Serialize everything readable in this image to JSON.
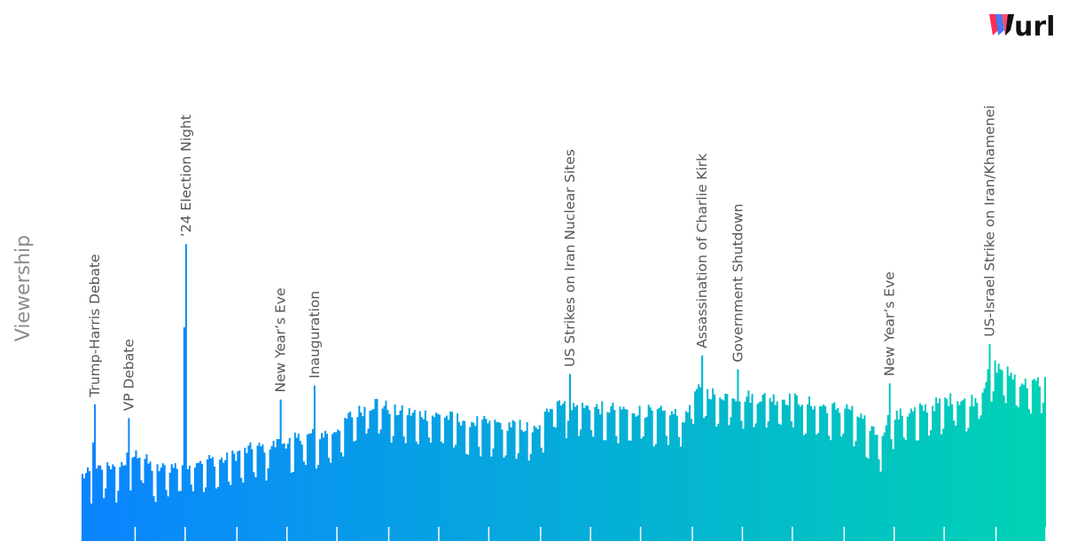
{
  "brand": {
    "logo_text": "wurl",
    "logo_colors": [
      "#ff2d55",
      "#2f6bff",
      "#111111"
    ]
  },
  "chart_data": {
    "type": "area",
    "title": "",
    "xlabel": "",
    "ylabel": "Viewership",
    "grid": false,
    "legend": "none",
    "y_scale": "relative (no numeric axis printed)",
    "gradient": [
      "#0a84ff",
      "#00d2b4"
    ],
    "ylim": [
      0,
      100
    ],
    "xlim": [
      0,
      540
    ],
    "x_ticks_count": 19,
    "x_tick_positions": [
      30,
      58,
      87,
      115,
      143,
      172,
      200,
      228,
      257,
      285,
      313,
      342,
      370,
      398,
      427,
      455,
      483,
      512,
      540
    ],
    "anchors": [
      [
        0,
        27
      ],
      [
        8,
        29
      ],
      [
        15,
        33
      ],
      [
        18,
        29
      ],
      [
        27,
        35
      ],
      [
        32,
        37
      ],
      [
        40,
        30
      ],
      [
        50,
        31
      ],
      [
        65,
        34
      ],
      [
        80,
        34
      ],
      [
        85,
        36
      ],
      [
        90,
        38
      ],
      [
        105,
        40
      ],
      [
        125,
        44
      ],
      [
        140,
        46
      ],
      [
        150,
        53
      ],
      [
        165,
        59
      ],
      [
        175,
        55
      ],
      [
        200,
        53
      ],
      [
        225,
        50
      ],
      [
        245,
        49
      ],
      [
        255,
        46
      ],
      [
        262,
        58
      ],
      [
        268,
        60
      ],
      [
        272,
        57
      ],
      [
        300,
        56
      ],
      [
        315,
        55
      ],
      [
        330,
        54
      ],
      [
        338,
        52
      ],
      [
        342,
        64
      ],
      [
        360,
        62
      ],
      [
        380,
        61
      ],
      [
        400,
        60
      ],
      [
        415,
        57
      ],
      [
        430,
        56
      ],
      [
        442,
        48
      ],
      [
        447,
        43
      ],
      [
        450,
        51
      ],
      [
        460,
        54
      ],
      [
        470,
        56
      ],
      [
        485,
        60
      ],
      [
        500,
        60
      ],
      [
        505,
        67
      ],
      [
        510,
        75
      ],
      [
        520,
        71
      ],
      [
        530,
        66
      ],
      [
        540,
        69
      ]
    ],
    "events": [
      {
        "x": 7,
        "y": 59,
        "label": "Trump-Harris Debate"
      },
      {
        "x": 26,
        "y": 53,
        "label": "VP Debate"
      },
      {
        "x": 58,
        "y": 128,
        "label": "’24 Election Night"
      },
      {
        "x": 111,
        "y": 61,
        "label": "New Year’s Eve"
      },
      {
        "x": 130,
        "y": 67,
        "label": "Inauguration"
      },
      {
        "x": 273,
        "y": 72,
        "label": "US Strikes on Iran Nuclear Sites"
      },
      {
        "x": 347,
        "y": 80,
        "label": "Assassination of Charlie Kirk"
      },
      {
        "x": 367,
        "y": 74,
        "label": "Government Shutdown"
      },
      {
        "x": 452,
        "y": 68,
        "label": "New Year’s Eve"
      },
      {
        "x": 508,
        "y": 85,
        "label": "US-Israel Strike on Iran/Khamenei"
      }
    ]
  }
}
